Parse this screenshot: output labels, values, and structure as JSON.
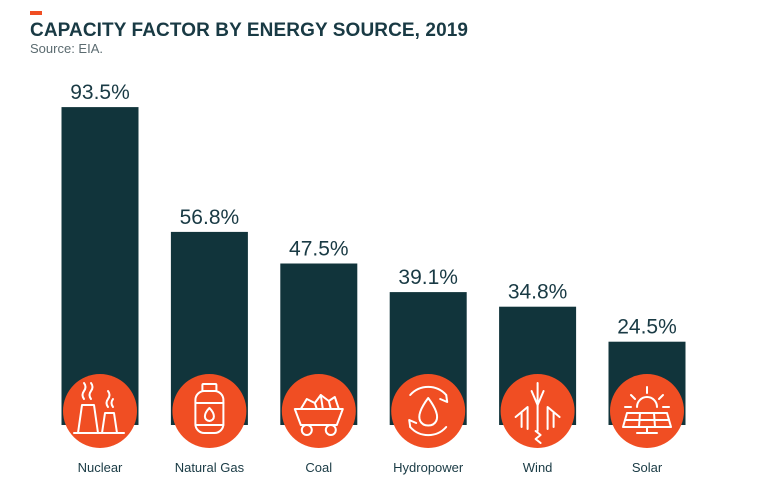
{
  "header": {
    "title": "CAPACITY FACTOR BY ENERGY SOURCE, 2019",
    "source": "Source: EIA."
  },
  "colors": {
    "bar": "#11343b",
    "icon_circle": "#f04e23",
    "accent": "#f04e23",
    "icon_line": "#ffffff"
  },
  "chart_data": {
    "type": "bar",
    "title": "CAPACITY FACTOR BY ENERGY SOURCE, 2019",
    "subtitle": "Source: EIA.",
    "categories": [
      "Nuclear",
      "Natural Gas",
      "Coal",
      "Hydropower",
      "Wind",
      "Solar"
    ],
    "values": [
      93.5,
      56.8,
      47.5,
      39.1,
      34.8,
      24.5
    ],
    "value_labels": [
      "93.5%",
      "56.8%",
      "47.5%",
      "39.1%",
      "34.8%",
      "24.5%"
    ],
    "icons": [
      "nuclear-plant-icon",
      "gas-tank-icon",
      "coal-cart-icon",
      "water-drop-icon",
      "wind-turbine-icon",
      "solar-panel-icon"
    ],
    "ylim": [
      0,
      100
    ],
    "grid": false,
    "legend": "none"
  }
}
